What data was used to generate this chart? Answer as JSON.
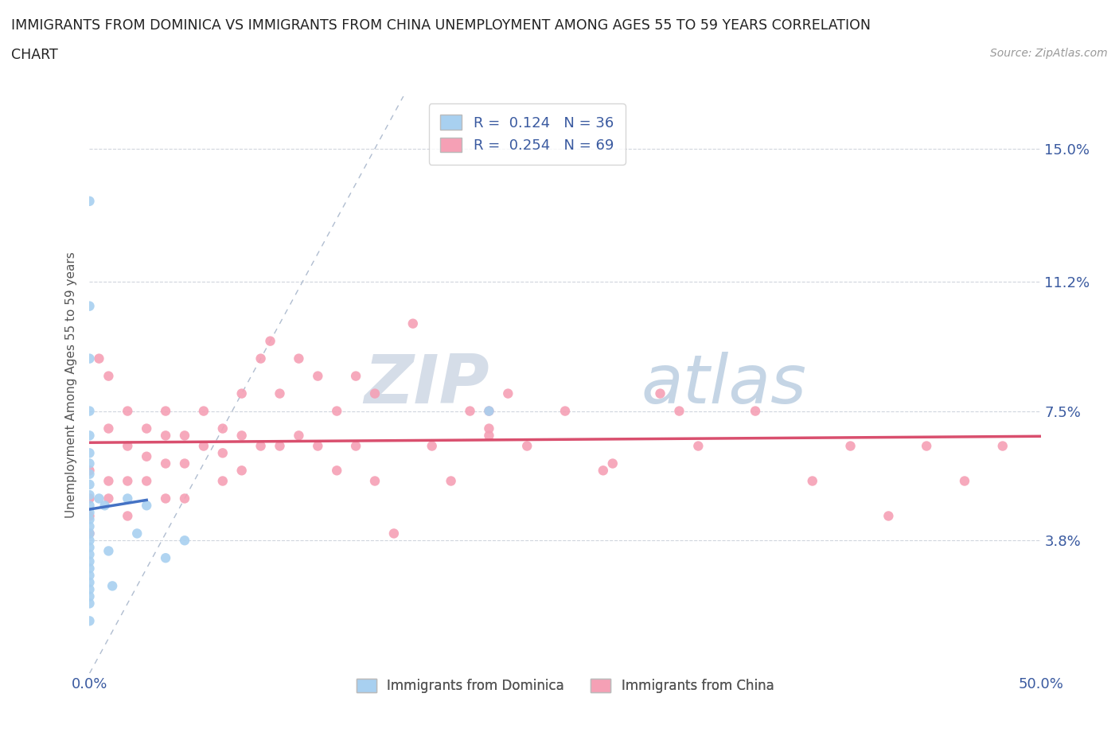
{
  "title_line1": "IMMIGRANTS FROM DOMINICA VS IMMIGRANTS FROM CHINA UNEMPLOYMENT AMONG AGES 55 TO 59 YEARS CORRELATION",
  "title_line2": "CHART",
  "source_text": "Source: ZipAtlas.com",
  "ylabel": "Unemployment Among Ages 55 to 59 years",
  "xlim": [
    0.0,
    0.5
  ],
  "ylim": [
    0.0,
    0.165
  ],
  "ytick_positions": [
    0.0,
    0.038,
    0.075,
    0.112,
    0.15
  ],
  "ytick_labels": [
    "",
    "3.8%",
    "7.5%",
    "11.2%",
    "15.0%"
  ],
  "dominica_color": "#a8d0f0",
  "china_color": "#f5a0b5",
  "dominica_R": 0.124,
  "dominica_N": 36,
  "china_R": 0.254,
  "china_N": 69,
  "trendline_dominica_color": "#4472c4",
  "trendline_china_color": "#d94f6e",
  "diagonal_color": "#b0bdd0",
  "watermark_zip": "ZIP",
  "watermark_atlas": "atlas",
  "legend_label_dominica": "Immigrants from Dominica",
  "legend_label_china": "Immigrants from China",
  "dominica_x": [
    0.0,
    0.0,
    0.0,
    0.0,
    0.0,
    0.0,
    0.0,
    0.0,
    0.0,
    0.0,
    0.0,
    0.0,
    0.0,
    0.0,
    0.0,
    0.0,
    0.0,
    0.0,
    0.0,
    0.0,
    0.0,
    0.0,
    0.0,
    0.0,
    0.0,
    0.0,
    0.005,
    0.008,
    0.01,
    0.012,
    0.02,
    0.025,
    0.03,
    0.04,
    0.05,
    0.21
  ],
  "dominica_y": [
    0.135,
    0.105,
    0.09,
    0.075,
    0.068,
    0.063,
    0.06,
    0.057,
    0.054,
    0.051,
    0.048,
    0.046,
    0.044,
    0.042,
    0.04,
    0.038,
    0.036,
    0.034,
    0.032,
    0.03,
    0.028,
    0.026,
    0.024,
    0.022,
    0.02,
    0.015,
    0.05,
    0.048,
    0.035,
    0.025,
    0.05,
    0.04,
    0.048,
    0.033,
    0.038,
    0.075
  ],
  "china_x": [
    0.0,
    0.0,
    0.0,
    0.0,
    0.005,
    0.01,
    0.01,
    0.01,
    0.01,
    0.02,
    0.02,
    0.02,
    0.02,
    0.03,
    0.03,
    0.03,
    0.04,
    0.04,
    0.04,
    0.04,
    0.05,
    0.05,
    0.05,
    0.06,
    0.06,
    0.07,
    0.07,
    0.07,
    0.08,
    0.08,
    0.08,
    0.09,
    0.09,
    0.1,
    0.1,
    0.11,
    0.11,
    0.12,
    0.12,
    0.13,
    0.13,
    0.14,
    0.14,
    0.15,
    0.15,
    0.16,
    0.17,
    0.18,
    0.19,
    0.2,
    0.21,
    0.22,
    0.23,
    0.25,
    0.27,
    0.3,
    0.32,
    0.35,
    0.38,
    0.4,
    0.42,
    0.44,
    0.46,
    0.48,
    0.275,
    0.31,
    0.21,
    0.095,
    0.21
  ],
  "china_y": [
    0.058,
    0.05,
    0.045,
    0.04,
    0.09,
    0.085,
    0.07,
    0.055,
    0.05,
    0.075,
    0.065,
    0.055,
    0.045,
    0.07,
    0.062,
    0.055,
    0.075,
    0.068,
    0.06,
    0.05,
    0.068,
    0.06,
    0.05,
    0.075,
    0.065,
    0.07,
    0.063,
    0.055,
    0.08,
    0.068,
    0.058,
    0.09,
    0.065,
    0.08,
    0.065,
    0.09,
    0.068,
    0.085,
    0.065,
    0.075,
    0.058,
    0.085,
    0.065,
    0.08,
    0.055,
    0.04,
    0.1,
    0.065,
    0.055,
    0.075,
    0.068,
    0.08,
    0.065,
    0.075,
    0.058,
    0.08,
    0.065,
    0.075,
    0.055,
    0.065,
    0.045,
    0.065,
    0.055,
    0.065,
    0.06,
    0.075,
    0.075,
    0.095,
    0.07
  ]
}
